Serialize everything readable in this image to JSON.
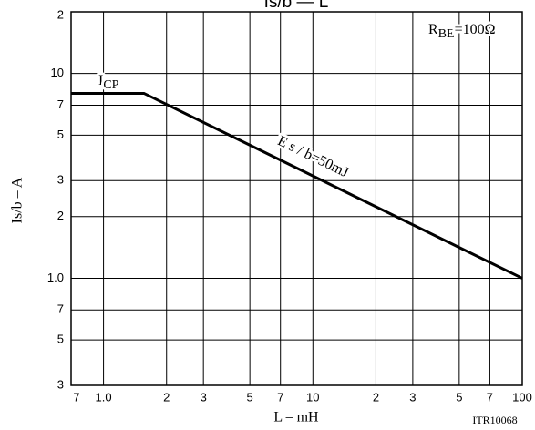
{
  "chart_data": {
    "type": "line",
    "title": "Is/b — L",
    "x_label": "L – mH",
    "y_label": "Is/b – A",
    "scale": "log",
    "grid": true,
    "x": [
      0.7,
      1.56,
      100
    ],
    "series": [
      {
        "name": "E s / b=50mJ",
        "color": "#000000",
        "values": [
          8,
          8,
          1
        ]
      }
    ],
    "xlim": [
      0.7,
      100
    ],
    "ylim": [
      0.3,
      20
    ],
    "xticks": [
      {
        "value": 0.7,
        "label": "7"
      },
      {
        "value": 1,
        "label": "1.0"
      },
      2,
      3,
      5,
      7,
      10,
      {
        "value": 20,
        "label": "2"
      },
      {
        "value": 30,
        "label": "3"
      },
      {
        "value": 50,
        "label": "5"
      },
      {
        "value": 70,
        "label": "7"
      },
      100
    ],
    "yticks": [
      {
        "value": 0.3,
        "label": "3"
      },
      {
        "value": 0.5,
        "label": "5"
      },
      {
        "value": 0.7,
        "label": "7"
      },
      {
        "value": 1,
        "label": "1.0"
      },
      2,
      3,
      5,
      7,
      10,
      {
        "value": 20,
        "label": "2"
      }
    ],
    "annotations": {
      "icp": {
        "text": "I",
        "sub": "CP"
      },
      "rbe": {
        "text": "R",
        "sub": "BE",
        "after": "=100Ω"
      },
      "code": "ITR10068"
    }
  }
}
